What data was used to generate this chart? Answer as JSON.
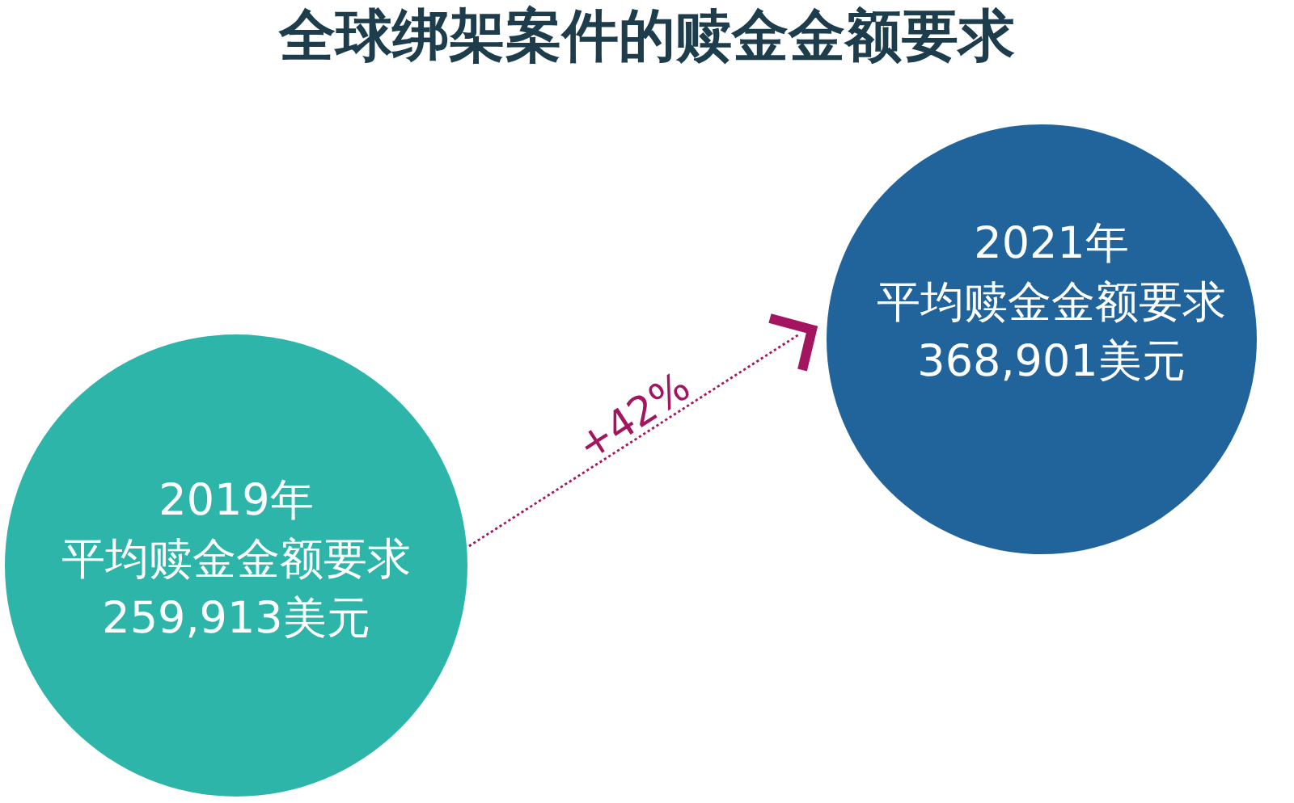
{
  "chart_data": {
    "type": "other",
    "title": "全球绑架案件的赎金金额要求",
    "categories": [
      "2019年",
      "2021年"
    ],
    "values": [
      259913,
      368901
    ],
    "value_labels": [
      "259,913美元",
      "368,901美元"
    ],
    "colors": [
      "#2db5aa",
      "#20649b"
    ],
    "annotations": [
      {
        "text": "平均赎金金额要求",
        "x": "2019年"
      },
      {
        "text": "平均赎金金额要求",
        "x": "2021年"
      },
      "+42%"
    ]
  }
}
